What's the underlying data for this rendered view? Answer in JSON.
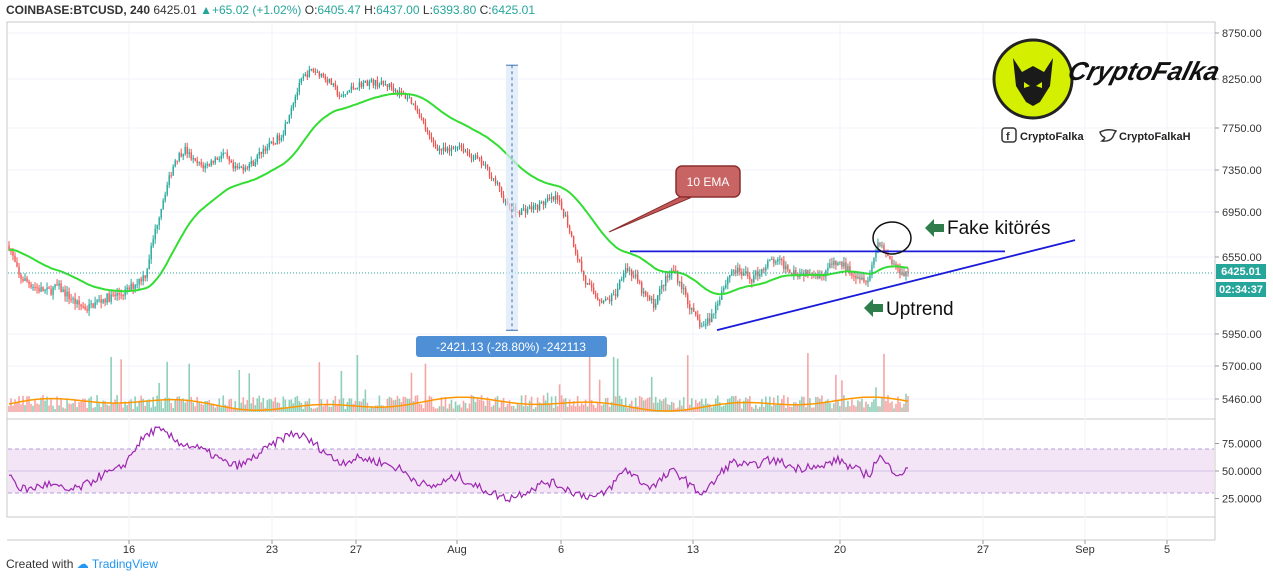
{
  "header": {
    "symbol": "COINBASE:BTCUSD, 240",
    "last": "6425.01",
    "change": "+65.02 (+1.02%)",
    "o_label": "O:",
    "o_value": "6405.47",
    "h_label": "H:",
    "h_value": "6437.00",
    "l_label": "L:",
    "l_value": "6393.80",
    "c_label": "C:",
    "c_value": "6425.01"
  },
  "footer": {
    "created_with": "Created with",
    "brand": "TradingView"
  },
  "price_labels": {
    "last_price": "6425.01",
    "countdown": "02:34:37"
  },
  "measure_label": "-2421.13 (-28.80%) -242113",
  "annotations": {
    "ema_callout": "10 EMA",
    "fake_breakout": "Fake kitörés",
    "uptrend": "Uptrend"
  },
  "logo": {
    "brand_text": "CryptoFalka",
    "facebook": "CryptoFalka",
    "twitter": "CryptoFalkaH"
  },
  "colors": {
    "up": "#26a69a",
    "down": "#ef5350",
    "ema": "#33dd33",
    "trendline": "#1a1adb",
    "volume_ma": "#ff9800",
    "rsi": "#9c27b0",
    "rsi_band": "#f3e5f5"
  },
  "chart_data": [
    {
      "type": "candlestick",
      "title": "",
      "x_ticks": [
        "16",
        "23",
        "27",
        "Aug",
        "6",
        "13",
        "20",
        "27",
        "Sep",
        "5"
      ],
      "y_ticks": [
        "8750.00",
        "8250.00",
        "7750.00",
        "7350.00",
        "6950.00",
        "6550.00",
        "5950.00",
        "5700.00",
        "5460.00"
      ],
      "close_path": [
        6650,
        6400,
        6350,
        6300,
        6280,
        6320,
        6250,
        6180,
        6150,
        6200,
        6230,
        6250,
        6280,
        6350,
        6420,
        6800,
        7150,
        7450,
        7550,
        7420,
        7380,
        7450,
        7500,
        7350,
        7380,
        7420,
        7550,
        7600,
        7700,
        8000,
        8250,
        8350,
        8300,
        8200,
        8050,
        8150,
        8200,
        8220,
        8200,
        8180,
        8100,
        8050,
        7900,
        7650,
        7550,
        7520,
        7600,
        7500,
        7450,
        7350,
        7200,
        7000,
        6950,
        6980,
        7000,
        7050,
        7080,
        6900,
        6600,
        6350,
        6250,
        6200,
        6250,
        6480,
        6400,
        6250,
        6180,
        6350,
        6450,
        6300,
        6100,
        6000,
        6100,
        6300,
        6450,
        6420,
        6380,
        6450,
        6520,
        6500,
        6450,
        6420,
        6450,
        6400,
        6480,
        6500,
        6450,
        6400,
        6380,
        6700,
        6550,
        6450,
        6425
      ],
      "ema_name": "10 EMA",
      "measure": {
        "from": 8400,
        "to": 5979,
        "label": "-2421.13 (-28.80%) -242113"
      },
      "resistance": 6600,
      "trendline": {
        "from": 5980,
        "to": 6700
      }
    },
    {
      "type": "bar",
      "name": "volume",
      "y_ticks": []
    },
    {
      "type": "line",
      "name": "RSI",
      "y_ticks": [
        "75.0000",
        "50.0000",
        "25.0000"
      ],
      "band": [
        30,
        70
      ],
      "values": [
        48,
        35,
        33,
        36,
        38,
        35,
        32,
        34,
        38,
        44,
        48,
        50,
        58,
        72,
        82,
        88,
        84,
        78,
        74,
        72,
        68,
        64,
        58,
        55,
        56,
        62,
        68,
        74,
        80,
        84,
        82,
        76,
        70,
        62,
        58,
        60,
        62,
        60,
        58,
        55,
        52,
        45,
        40,
        35,
        38,
        42,
        45,
        40,
        35,
        32,
        28,
        25,
        28,
        32,
        36,
        40,
        38,
        34,
        30,
        28,
        26,
        30,
        40,
        52,
        46,
        38,
        36,
        44,
        50,
        44,
        34,
        30,
        38,
        50,
        58,
        56,
        54,
        58,
        60,
        58,
        54,
        52,
        56,
        52,
        58,
        60,
        54,
        50,
        46,
        64,
        54,
        48,
        50
      ]
    }
  ]
}
